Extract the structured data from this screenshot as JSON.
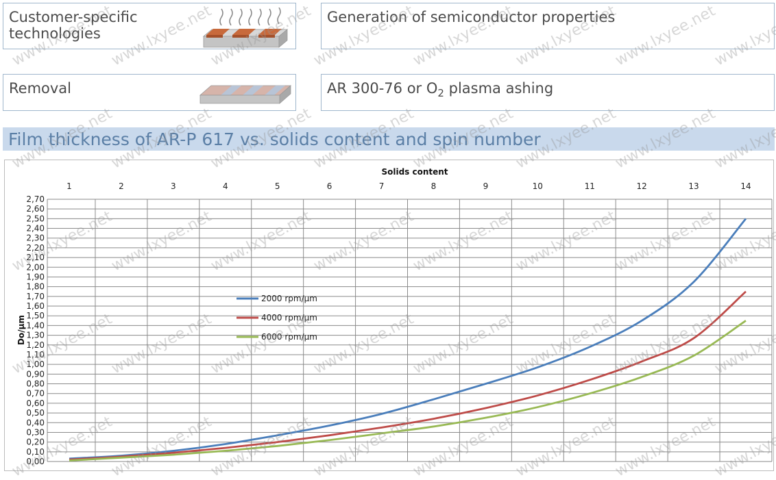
{
  "boxes": {
    "customer_label": "Customer-specific technologies",
    "customer_desc": "Generation of semiconductor properties",
    "removal_label": "Removal",
    "removal_desc_pre": "AR 300-76 or O",
    "removal_desc_sub": "2",
    "removal_desc_post": " plasma ashing"
  },
  "section_title": "Film thickness of AR-P 617 vs. solids content and spin number",
  "watermark": "www.lxyee.net",
  "colors": {
    "series_2000": "#4a7ebb",
    "series_4000": "#be4b48",
    "series_6000": "#98b954",
    "title_bar": "#c9d9ec",
    "title_text": "#5b7fa6"
  },
  "chart_data": {
    "type": "line",
    "xlabel": "Solids content",
    "ylabel": "Do/µm",
    "x_axis_position": "top",
    "xlim": [
      1,
      14
    ],
    "ylim": [
      0,
      2.7
    ],
    "x_ticks": [
      "1",
      "2",
      "3",
      "4",
      "5",
      "6",
      "7",
      "8",
      "9",
      "10",
      "11",
      "12",
      "13",
      "14"
    ],
    "y_ticks": [
      "0,00",
      "0,10",
      "0,20",
      "0,30",
      "0,40",
      "0,50",
      "0,60",
      "0,70",
      "0,80",
      "0,90",
      "1,00",
      "1,10",
      "1,20",
      "1,30",
      "1,40",
      "1,50",
      "1,60",
      "1,70",
      "1,80",
      "1,90",
      "2,00",
      "2,10",
      "2,20",
      "2,30",
      "2,40",
      "2,50",
      "2,60",
      "2,70"
    ],
    "grid": true,
    "legend_position": "middle-left",
    "x": [
      1,
      2,
      3,
      4,
      5,
      6,
      7,
      8,
      9,
      10,
      11,
      12,
      13,
      14
    ],
    "series": [
      {
        "name": "2000 rpm/µm",
        "values": [
          0.03,
          0.06,
          0.11,
          0.18,
          0.27,
          0.37,
          0.49,
          0.64,
          0.8,
          0.97,
          1.18,
          1.45,
          1.85,
          2.5
        ]
      },
      {
        "name": "4000 rpm/µm",
        "values": [
          0.02,
          0.05,
          0.09,
          0.14,
          0.2,
          0.27,
          0.35,
          0.44,
          0.55,
          0.68,
          0.84,
          1.03,
          1.27,
          1.75
        ]
      },
      {
        "name": "6000 rpm/µm",
        "values": [
          0.01,
          0.04,
          0.07,
          0.11,
          0.16,
          0.22,
          0.29,
          0.36,
          0.45,
          0.56,
          0.7,
          0.87,
          1.09,
          1.45
        ]
      }
    ]
  }
}
